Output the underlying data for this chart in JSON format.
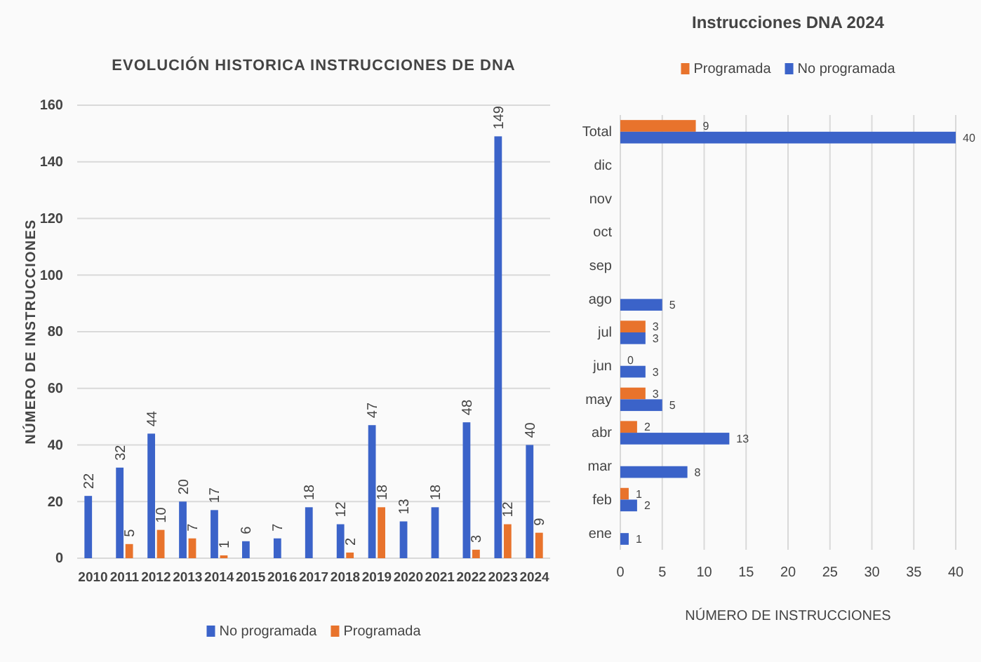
{
  "chart_data": [
    {
      "type": "bar",
      "title": "EVOLUCIÓN HISTORICA INSTRUCCIONES DE DNA",
      "ylabel": "NÚMERO DE INSTRUCCIONES",
      "categories": [
        "2010",
        "2011",
        "2012",
        "2013",
        "2014",
        "2015",
        "2016",
        "2017",
        "2018",
        "2019",
        "2020",
        "2021",
        "2022",
        "2023",
        "2024"
      ],
      "series": [
        {
          "name": "No programada",
          "color": "#3b63c9",
          "values": [
            22,
            32,
            44,
            20,
            17,
            6,
            7,
            18,
            12,
            47,
            13,
            18,
            48,
            149,
            40
          ]
        },
        {
          "name": "Programada",
          "color": "#e8732c",
          "values": [
            null,
            5,
            10,
            7,
            1,
            null,
            null,
            null,
            2,
            18,
            null,
            null,
            3,
            12,
            9
          ]
        }
      ],
      "ylim": [
        0,
        160
      ],
      "yticks": [
        0,
        20,
        40,
        60,
        80,
        100,
        120,
        140,
        160
      ],
      "grid": "y",
      "legend": "bottom",
      "data_labels": true
    },
    {
      "type": "bar",
      "orientation": "horizontal",
      "title": "Instrucciones DNA 2024",
      "xlabel": "NÚMERO DE INSTRUCCIONES",
      "categories": [
        "Total",
        "dic",
        "nov",
        "oct",
        "sep",
        "ago",
        "jul",
        "jun",
        "may",
        "abr",
        "mar",
        "feb",
        "ene"
      ],
      "series": [
        {
          "name": "Programada",
          "color": "#e8732c",
          "values": [
            9,
            null,
            null,
            null,
            null,
            null,
            3,
            0,
            3,
            2,
            null,
            1,
            null
          ]
        },
        {
          "name": "No programada",
          "color": "#3b63c9",
          "values": [
            40,
            null,
            null,
            null,
            null,
            5,
            3,
            3,
            5,
            13,
            8,
            2,
            1
          ]
        }
      ],
      "xlim": [
        0,
        40
      ],
      "xticks": [
        0,
        5,
        10,
        15,
        20,
        25,
        30,
        35,
        40
      ],
      "grid": "x",
      "legend": "top",
      "data_labels": true
    }
  ]
}
